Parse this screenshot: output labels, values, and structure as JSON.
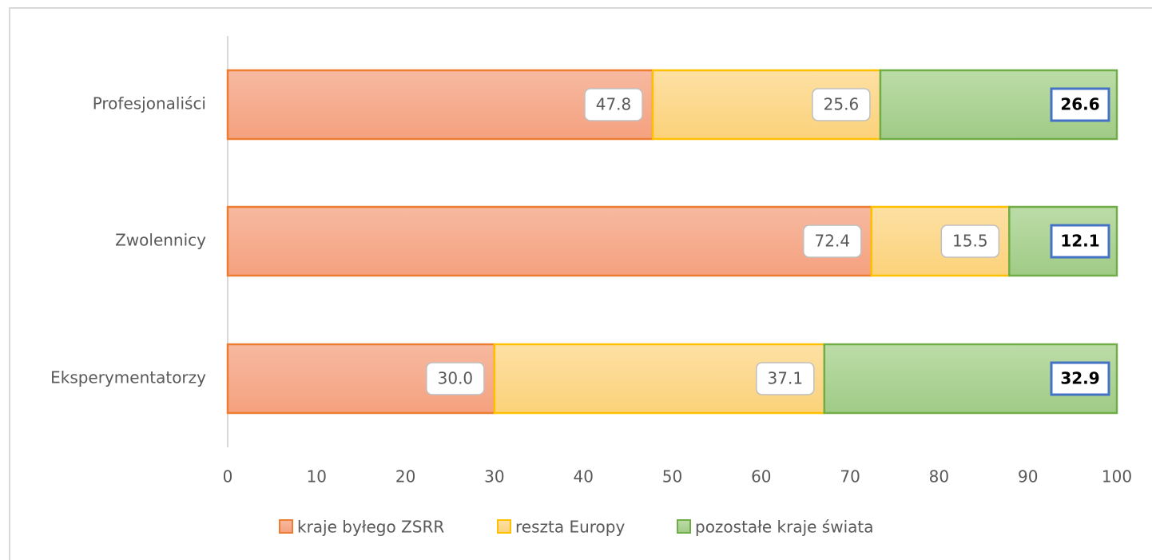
{
  "chart_data": {
    "type": "stacked-bar-horizontal",
    "categories": [
      "Profesjonaliści",
      "Zwolennicy",
      "Eksperymentatorzy"
    ],
    "series": [
      {
        "name": "kraje byłego ZSRR",
        "color": "#ed7d31",
        "values": [
          47.8,
          72.4,
          30.0
        ],
        "value_labels": [
          "47.8",
          "72.4",
          "30.0"
        ]
      },
      {
        "name": "reszta Europy",
        "color": "#ffc000",
        "values": [
          25.6,
          15.5,
          37.1
        ],
        "value_labels": [
          "25.6",
          "15.5",
          "37.1"
        ]
      },
      {
        "name": "pozostałe kraje świata",
        "color": "#70ad47",
        "values": [
          26.6,
          12.1,
          32.9
        ],
        "value_labels": [
          "26.6",
          "12.1",
          "32.9"
        ]
      }
    ],
    "xlim": [
      0,
      100
    ],
    "xticks": [
      0,
      10,
      20,
      30,
      40,
      50,
      60,
      70,
      80,
      90,
      100
    ],
    "legend": "bottom",
    "grid": false
  }
}
